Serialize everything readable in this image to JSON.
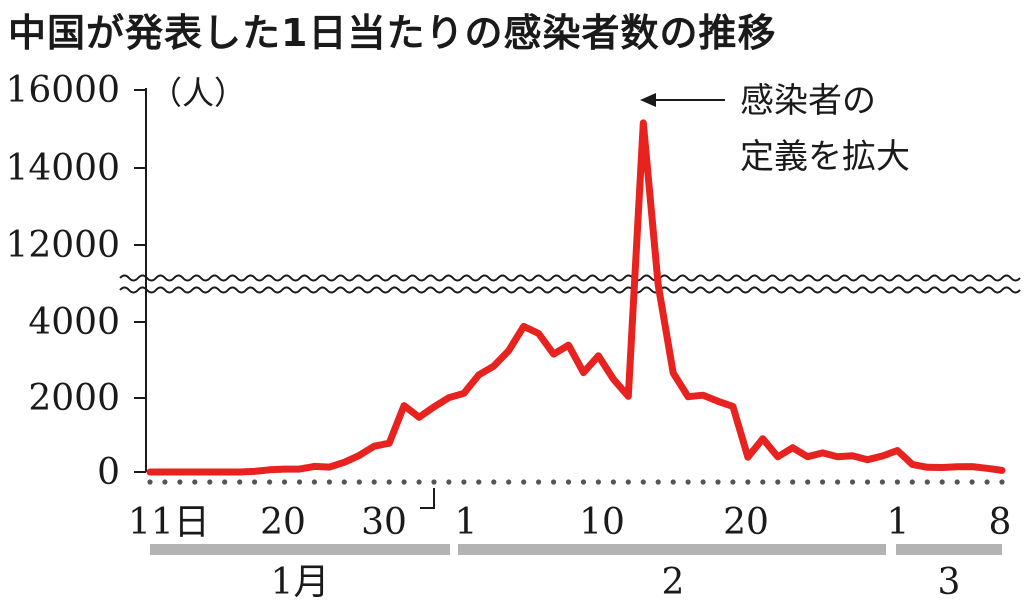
{
  "chart_data": {
    "type": "line",
    "title": "中国が発表した1日当たりの感染者数の推移",
    "ylabel": "（人）",
    "y_ticks_upper": [
      "16000",
      "14000",
      "12000"
    ],
    "y_ticks_lower": [
      "4000",
      "2000",
      "0"
    ],
    "ylim": [
      0,
      16000
    ],
    "axis_break": [
      5000,
      11000
    ],
    "x_tick_labels": [
      "11日",
      "20",
      "30",
      "1",
      "10",
      "20",
      "1",
      "8"
    ],
    "month_labels": [
      "1月",
      "2",
      "3"
    ],
    "annotation": [
      "感染者の",
      "定義を拡大"
    ],
    "series_color": "#e8231f",
    "x_start": "2020-01-11",
    "x_end": "2020-03-08",
    "values": [
      0,
      0,
      0,
      0,
      0,
      0,
      0,
      17,
      59,
      77,
      77,
      149,
      131,
      259,
      444,
      688,
      769,
      1771,
      1459,
      1737,
      1981,
      2099,
      2589,
      2825,
      3235,
      3884,
      3694,
      3143,
      3385,
      2652,
      3099,
      2478,
      2015,
      15152,
      5090,
      2641,
      2009,
      2048,
      1886,
      1749,
      394,
      889,
      406,
      648,
      409,
      508,
      406,
      433,
      327,
      427,
      573,
      202,
      125,
      119,
      139,
      143,
      99,
      44
    ]
  }
}
